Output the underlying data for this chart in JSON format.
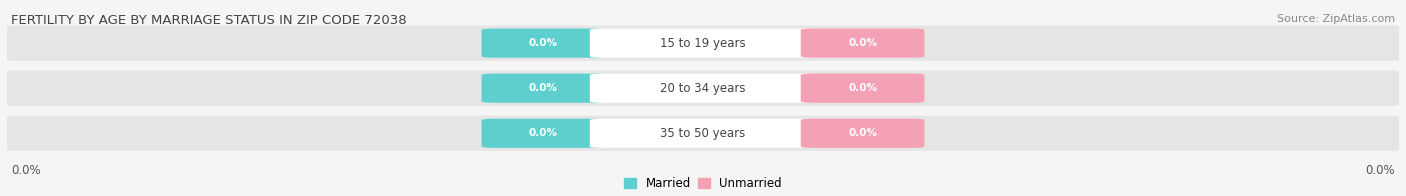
{
  "title": "FERTILITY BY AGE BY MARRIAGE STATUS IN ZIP CODE 72038",
  "source": "Source: ZipAtlas.com",
  "age_groups": [
    "15 to 19 years",
    "20 to 34 years",
    "35 to 50 years"
  ],
  "married_values": [
    0.0,
    0.0,
    0.0
  ],
  "unmarried_values": [
    0.0,
    0.0,
    0.0
  ],
  "married_color": "#5ecfcf",
  "unmarried_color": "#f4a0b5",
  "bar_bg_color": "#e5e5e5",
  "background_color": "#f5f5f5",
  "title_fontsize": 9.5,
  "source_fontsize": 8,
  "legend_married": "Married",
  "legend_unmarried": "Unmarried",
  "axis_value_left": "0.0%",
  "axis_value_right": "0.0%"
}
